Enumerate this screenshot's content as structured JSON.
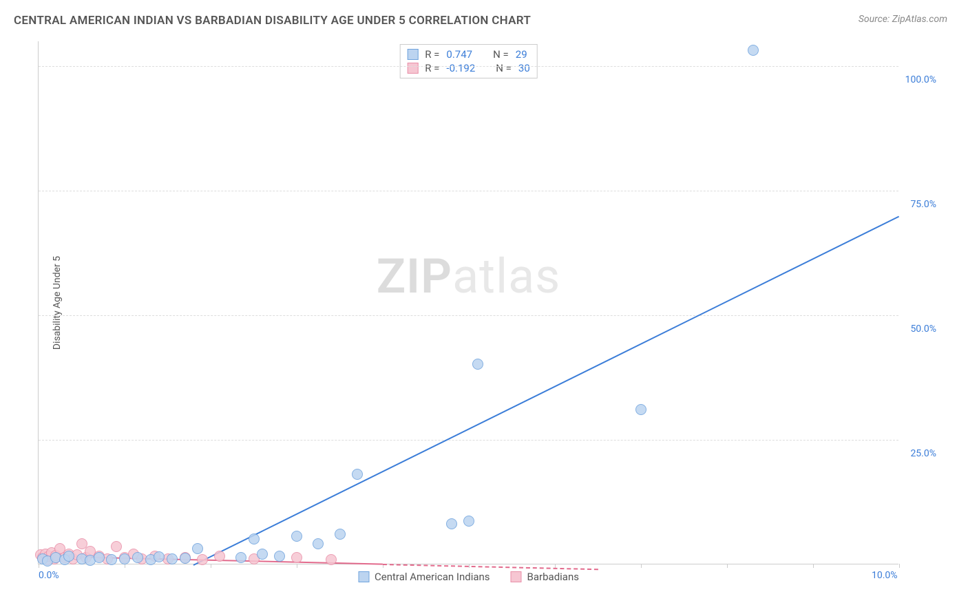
{
  "header": {
    "title": "CENTRAL AMERICAN INDIAN VS BARBADIAN DISABILITY AGE UNDER 5 CORRELATION CHART",
    "source": "Source: ZipAtlas.com"
  },
  "watermark": {
    "part1": "ZIP",
    "part2": "atlas"
  },
  "chart": {
    "type": "scatter",
    "y_axis_label": "Disability Age Under 5",
    "xlim": [
      0,
      10
    ],
    "ylim": [
      0,
      105
    ],
    "x_ticks": [
      0,
      1,
      2,
      3,
      4,
      5,
      6,
      7,
      8,
      9,
      10
    ],
    "x_tick_labels_shown": {
      "0": "0.0%",
      "10": "10.0%"
    },
    "y_ticks": [
      25,
      50,
      75,
      100
    ],
    "y_tick_labels": {
      "25": "25.0%",
      "50": "50.0%",
      "75": "75.0%",
      "100": "100.0%"
    },
    "tick_label_color": "#3b7dd8",
    "axis_label_color": "#555555",
    "grid_color": "#dddddd",
    "background_color": "#ffffff",
    "series": [
      {
        "name": "Central American Indians",
        "color_fill": "#bcd4f0",
        "color_stroke": "#6fa3dd",
        "marker_radius": 8,
        "R": "0.747",
        "N": "29",
        "stat_value_color": "#3b7dd8",
        "trend": {
          "x1": 1.8,
          "y1": 0,
          "x2": 10,
          "y2": 70,
          "color": "#3b7dd8",
          "dash_extend": false
        },
        "points": [
          [
            0.05,
            1.0
          ],
          [
            0.1,
            0.5
          ],
          [
            0.2,
            1.2
          ],
          [
            0.3,
            0.8
          ],
          [
            0.35,
            1.5
          ],
          [
            0.5,
            1.0
          ],
          [
            0.6,
            0.7
          ],
          [
            0.7,
            1.3
          ],
          [
            0.85,
            0.9
          ],
          [
            1.0,
            1.0
          ],
          [
            1.15,
            1.2
          ],
          [
            1.3,
            0.8
          ],
          [
            1.4,
            1.4
          ],
          [
            1.55,
            1.0
          ],
          [
            1.7,
            1.1
          ],
          [
            1.85,
            3.0
          ],
          [
            2.35,
            1.2
          ],
          [
            2.5,
            5.0
          ],
          [
            2.6,
            2.0
          ],
          [
            2.8,
            1.5
          ],
          [
            3.0,
            5.5
          ],
          [
            3.25,
            4.0
          ],
          [
            3.5,
            6.0
          ],
          [
            3.7,
            18.0
          ],
          [
            4.8,
            8.0
          ],
          [
            5.0,
            8.5
          ],
          [
            5.1,
            40.0
          ],
          [
            7.0,
            31.0
          ],
          [
            8.3,
            103.0
          ]
        ]
      },
      {
        "name": "Barbadians",
        "color_fill": "#f6c6d2",
        "color_stroke": "#e98fa8",
        "marker_radius": 8,
        "R": "-0.192",
        "N": "30",
        "stat_value_color": "#3b7dd8",
        "trend": {
          "x1": 0,
          "y1": 1.8,
          "x2": 4.0,
          "y2": 0.2,
          "color": "#e26a8c",
          "dash_extend": true,
          "dash_to_x": 6.5
        },
        "points": [
          [
            0.02,
            1.8
          ],
          [
            0.05,
            1.2
          ],
          [
            0.08,
            2.0
          ],
          [
            0.1,
            0.9
          ],
          [
            0.12,
            1.5
          ],
          [
            0.15,
            2.2
          ],
          [
            0.18,
            1.0
          ],
          [
            0.2,
            1.7
          ],
          [
            0.25,
            3.0
          ],
          [
            0.3,
            1.2
          ],
          [
            0.35,
            2.0
          ],
          [
            0.4,
            1.0
          ],
          [
            0.45,
            1.8
          ],
          [
            0.5,
            4.0
          ],
          [
            0.55,
            1.3
          ],
          [
            0.6,
            2.5
          ],
          [
            0.7,
            1.5
          ],
          [
            0.8,
            1.0
          ],
          [
            0.9,
            3.5
          ],
          [
            1.0,
            1.2
          ],
          [
            1.1,
            2.0
          ],
          [
            1.2,
            1.0
          ],
          [
            1.35,
            1.5
          ],
          [
            1.5,
            1.0
          ],
          [
            1.7,
            1.2
          ],
          [
            1.9,
            0.8
          ],
          [
            2.1,
            1.5
          ],
          [
            2.5,
            1.0
          ],
          [
            3.0,
            1.2
          ],
          [
            3.4,
            0.8
          ]
        ]
      }
    ],
    "stats_legend_labels": {
      "R": "R =",
      "N": "N ="
    },
    "series_legend_position": "bottom-center"
  }
}
